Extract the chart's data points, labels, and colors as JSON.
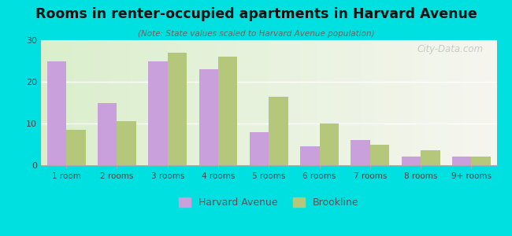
{
  "title": "Rooms in renter-occupied apartments in Harvard Avenue",
  "subtitle": "(Note: State values scaled to Harvard Avenue population)",
  "categories": [
    "1 room",
    "2 rooms",
    "3 rooms",
    "4 rooms",
    "5 rooms",
    "6 rooms",
    "7 rooms",
    "8 rooms",
    "9+ rooms"
  ],
  "harvard_values": [
    25,
    15,
    25,
    23,
    8,
    4.5,
    6,
    2,
    2
  ],
  "brookline_values": [
    8.5,
    10.5,
    27,
    26,
    16.5,
    10,
    5,
    3.5,
    2
  ],
  "harvard_color": "#c9a0dc",
  "brookline_color": "#b5c77a",
  "background_outer": "#00e0e0",
  "ylim": [
    0,
    30
  ],
  "yticks": [
    0,
    10,
    20,
    30
  ],
  "bar_width": 0.38,
  "watermark": "City-Data.com",
  "legend_harvard": "Harvard Avenue",
  "legend_brookline": "Brookline"
}
